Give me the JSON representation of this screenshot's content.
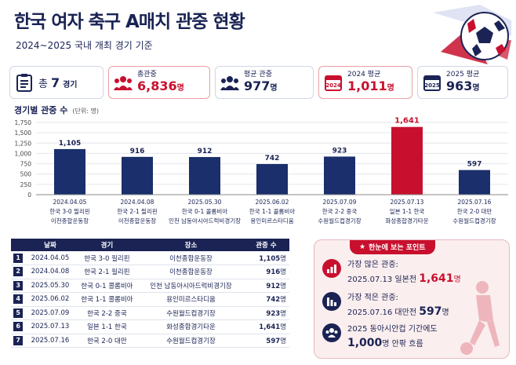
{
  "header": {
    "title": "한국 여자 축구 A매치 관중 현황",
    "subtitle": "2024~2025 국내 개최 경기 기준"
  },
  "cards": [
    {
      "label": "총",
      "value": "7",
      "unit": "경기",
      "icon": "clipboard-icon"
    },
    {
      "label": "총관중",
      "value": "6,836",
      "unit": "명",
      "icon": "crowd-icon"
    },
    {
      "label": "평균 관중",
      "value": "977",
      "unit": "명",
      "icon": "people-icon"
    },
    {
      "label": "2024 평균",
      "value": "1,011",
      "unit": "명",
      "icon": "calendar-2024-icon"
    },
    {
      "label": "2025 평균",
      "value": "963",
      "unit": "명",
      "icon": "calendar-2025-icon"
    }
  ],
  "chart_title": "경기별 관중 수",
  "chart_unit": "(단위: 명)",
  "chart_data": {
    "type": "bar",
    "title": "경기별 관중 수",
    "ylim": [
      0,
      1750
    ],
    "yticks": [
      "0",
      "250",
      "500",
      "750",
      "1,000",
      "1,250",
      "1,500",
      "1,750"
    ],
    "dates": [
      "2024.04.05",
      "2024.04.08",
      "2025.05.30",
      "2025.06.02",
      "2025.07.09",
      "2025.07.13",
      "2025.07.16"
    ],
    "matches": [
      "한국 3-0 필리핀",
      "한국 2-1 필리핀",
      "한국 0-1 콜롬비아",
      "한국 1-1 콜롬비아",
      "한국 2-2 중국",
      "일본 1-1 한국",
      "한국 2-0 대만"
    ],
    "venues": [
      "이천종합운동장",
      "이천종합운동장",
      "인천 남동아시아드럭비경기장",
      "용인미르스타디움",
      "수원월드컵경기장",
      "화성종합경기타운",
      "수원월드컵경기장"
    ],
    "values": [
      1105,
      916,
      912,
      742,
      923,
      1641,
      597
    ],
    "value_labels": [
      "1,105",
      "916",
      "912",
      "742",
      "923",
      "1,641",
      "597"
    ],
    "highlight_index": 5,
    "colors": {
      "normal": "#1a2f6b",
      "highlight": "#c8102e"
    }
  },
  "table": {
    "headers": [
      "날짜",
      "경기",
      "장소",
      "관중 수"
    ],
    "rows": [
      {
        "no": "1",
        "date": "2024.04.05",
        "match": "한국 3-0 필리핀",
        "venue": "이천종합운동장",
        "count": "1,105",
        "unit": "명"
      },
      {
        "no": "2",
        "date": "2024.04.08",
        "match": "한국 2-1 필리핀",
        "venue": "이천종합운동장",
        "count": "916",
        "unit": "명"
      },
      {
        "no": "3",
        "date": "2025.05.30",
        "match": "한국 0-1 콜롬비아",
        "venue": "인천 남동아시아드럭비경기장",
        "count": "912",
        "unit": "명"
      },
      {
        "no": "4",
        "date": "2025.06.02",
        "match": "한국 1-1 콜롬비아",
        "venue": "용인미르스타디움",
        "count": "742",
        "unit": "명"
      },
      {
        "no": "5",
        "date": "2025.07.09",
        "match": "한국 2-2 중국",
        "venue": "수원월드컵경기장",
        "count": "923",
        "unit": "명"
      },
      {
        "no": "6",
        "date": "2025.07.13",
        "match": "일본 1-1 한국",
        "venue": "화성종합경기타운",
        "count": "1,641",
        "unit": "명"
      },
      {
        "no": "7",
        "date": "2025.07.16",
        "match": "한국 2-0 대만",
        "venue": "수원월드컵경기장",
        "count": "597",
        "unit": "명"
      }
    ]
  },
  "panel": {
    "badge": "한눈에 보는 포인트",
    "points": [
      {
        "line1": "가장 많은 관중:",
        "line2_prefix": "2025.07.13 일본전 ",
        "value": "1,641",
        "unit": "명",
        "icon": "chart-up-icon"
      },
      {
        "line1": "가장 적은 관중:",
        "line2_prefix": "2025.07.16 대만전 ",
        "value": "597",
        "unit": "명",
        "icon": "chart-down-icon"
      },
      {
        "line1": "2025 동아시안컵 기간에도",
        "line2_prefix": "",
        "value": "1,000",
        "unit": "명 안팎 흐름",
        "icon": "group-icon"
      }
    ]
  },
  "colors": {
    "navy": "#1a2354",
    "red": "#c8102e",
    "accent_bg": "#fbeeee"
  }
}
